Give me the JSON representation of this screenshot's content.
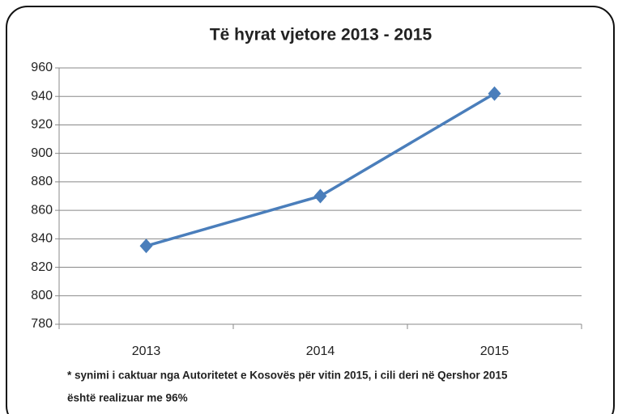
{
  "chart_data": {
    "type": "line",
    "title": "Të hyrat vjetore 2013 - 2015",
    "categories": [
      "2013",
      "2014",
      "2015"
    ],
    "series": [
      {
        "name": "Të hyrat",
        "color": "#4a7ebb",
        "values": [
          835,
          870,
          942
        ]
      }
    ],
    "ylim": [
      780,
      960
    ],
    "yticks": [
      780,
      800,
      820,
      840,
      860,
      880,
      900,
      920,
      940,
      960
    ],
    "grid": true,
    "note": [
      "* synimi i caktuar nga Autoritetet e Kosovës për vitin 2015, i cili deri në Qershor 2015",
      "është realizuar me 96%"
    ]
  }
}
